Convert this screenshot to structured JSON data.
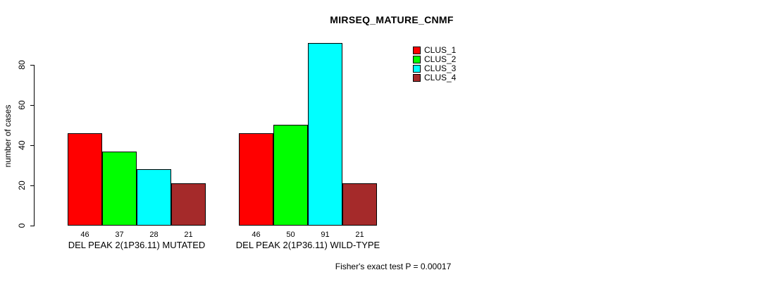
{
  "chart_data": {
    "type": "bar",
    "title": "MIRSEQ_MATURE_CNMF",
    "ylabel": "number of cases",
    "xlabel": "",
    "yticks": [
      0,
      20,
      40,
      60,
      80
    ],
    "ylim": [
      0,
      95
    ],
    "grid": false,
    "legend_position": "top-right-outside",
    "bar_value_labels_shown": true,
    "categories": [
      "DEL PEAK 2(1P36.11) MUTATED",
      "DEL PEAK 2(1P36.11) WILD-TYPE"
    ],
    "series": [
      {
        "name": "CLUS_1",
        "color": "#ff0000",
        "values": [
          46,
          46
        ]
      },
      {
        "name": "CLUS_2",
        "color": "#00ff00",
        "values": [
          37,
          50
        ]
      },
      {
        "name": "CLUS_3",
        "color": "#00ffff",
        "values": [
          28,
          91
        ]
      },
      {
        "name": "CLUS_4",
        "color": "#a52a2a",
        "values": [
          21,
          21
        ]
      }
    ],
    "footnote": "Fisher's exact test P = 0.00017"
  }
}
